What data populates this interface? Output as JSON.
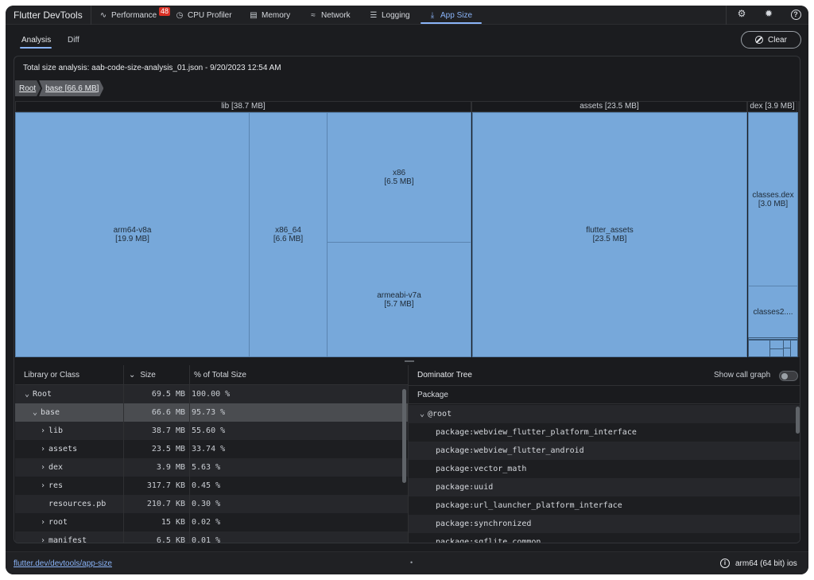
{
  "app_title": "Flutter DevTools",
  "tabs": [
    {
      "label": "Performance",
      "icon": "performance-icon",
      "glyph": "∿",
      "badge": "48"
    },
    {
      "label": "CPU Profiler",
      "icon": "timer-icon",
      "glyph": "◷"
    },
    {
      "label": "Memory",
      "icon": "memory-icon",
      "glyph": "▤"
    },
    {
      "label": "Network",
      "icon": "wifi-icon",
      "glyph": "≈"
    },
    {
      "label": "Logging",
      "icon": "logging-icon",
      "glyph": "☰"
    },
    {
      "label": "App Size",
      "icon": "app-size-icon",
      "glyph": "⤓",
      "active": true
    }
  ],
  "toolbar_icons": [
    "settings-icon",
    "bug-icon",
    "help-icon"
  ],
  "subtabs": {
    "analysis": "Analysis",
    "diff": "Diff",
    "active": "Analysis"
  },
  "clear_button": {
    "label": "Clear",
    "icon": "block-icon"
  },
  "analysis_title": "Total size analysis: aab-code-size-analysis_01.json - 9/20/2023 12:54 AM",
  "breadcrumb": [
    "Root",
    "base [66.6 MB]"
  ],
  "treemap": {
    "headers": {
      "lib": "lib [38.7 MB]",
      "assets": "assets [23.5 MB]",
      "dex": "dex [3.9 MB]"
    },
    "cells": {
      "arm64": {
        "name": "arm64-v8a",
        "size": "[19.9 MB]"
      },
      "x86_64": {
        "name": "x86_64",
        "size": "[6.6 MB]"
      },
      "x86": {
        "name": "x86",
        "size": "[6.5 MB]"
      },
      "armeabi": {
        "name": "armeabi-v7a",
        "size": "[5.7 MB]"
      },
      "flutter_assets": {
        "name": "flutter_assets",
        "size": "[23.5 MB]"
      },
      "classes_dex": {
        "name": "classes.dex",
        "size": "[3.0 MB]"
      },
      "classes2": {
        "name": "classes2...."
      }
    }
  },
  "table": {
    "columns": {
      "name": "Library or Class",
      "size": "Size",
      "pct": "% of Total Size"
    },
    "rows": [
      {
        "name": "Root",
        "chevron": "⌄",
        "indent": 0,
        "size": "69.5 MB",
        "pct": "100.00 %"
      },
      {
        "name": "base",
        "chevron": "⌄",
        "indent": 1,
        "size": "66.6 MB",
        "pct": "95.73 %",
        "selected": true
      },
      {
        "name": "lib",
        "chevron": "›",
        "indent": 2,
        "size": "38.7 MB",
        "pct": "55.60 %"
      },
      {
        "name": "assets",
        "chevron": "›",
        "indent": 2,
        "size": "23.5 MB",
        "pct": "33.74 %"
      },
      {
        "name": "dex",
        "chevron": "›",
        "indent": 2,
        "size": "3.9 MB",
        "pct": "5.63 %"
      },
      {
        "name": "res",
        "chevron": "›",
        "indent": 2,
        "size": "317.7 KB",
        "pct": "0.45 %"
      },
      {
        "name": "resources.pb",
        "chevron": "",
        "indent": 2,
        "size": "210.7 KB",
        "pct": "0.30 %"
      },
      {
        "name": "root",
        "chevron": "›",
        "indent": 2,
        "size": "15 KB",
        "pct": "0.02 %"
      },
      {
        "name": "manifest",
        "chevron": "›",
        "indent": 2,
        "size": "6.5 KB",
        "pct": "0.01 %"
      }
    ]
  },
  "dominator": {
    "title": "Dominator Tree",
    "call_graph_label": "Show call graph",
    "package_header": "Package",
    "rows": [
      {
        "name": "@root",
        "chevron": "⌄",
        "indent": 0
      },
      {
        "name": "package:webview_flutter_platform_interface",
        "indent": 1
      },
      {
        "name": "package:webview_flutter_android",
        "indent": 1
      },
      {
        "name": "package:vector_math",
        "indent": 1
      },
      {
        "name": "package:uuid",
        "indent": 1
      },
      {
        "name": "package:url_launcher_platform_interface",
        "indent": 1
      },
      {
        "name": "package:synchronized",
        "indent": 1
      },
      {
        "name": "package:sqflite_common",
        "indent": 1
      }
    ]
  },
  "status": {
    "link": "flutter.dev/devtools/app-size",
    "dot": "•",
    "device": "arm64 (64 bit) ios",
    "info_icon": "i"
  },
  "colors": {
    "accent": "#8ab4f8",
    "treemap_cell": "#77a8da",
    "badge": "#d93025"
  }
}
